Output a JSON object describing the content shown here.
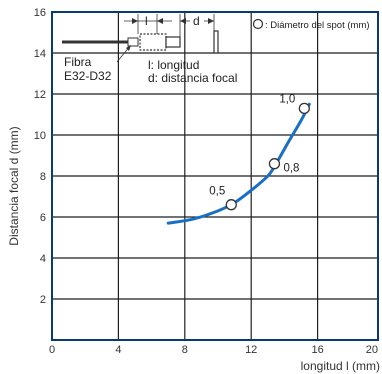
{
  "chart_data": {
    "type": "line",
    "xlabel": "longitud l (mm)",
    "ylabel": "Distancia focal d (mm)",
    "xlim": [
      0,
      20
    ],
    "ylim": [
      0,
      16
    ],
    "xticks": [
      "0",
      "4",
      "8",
      "12",
      "16",
      "20"
    ],
    "yticks": [
      "2",
      "4",
      "6",
      "8",
      "10",
      "12",
      "14",
      "16"
    ],
    "grid": true,
    "curve": {
      "x": [
        7.0,
        8.5,
        10.0,
        11.0,
        12.0,
        13.0,
        13.5,
        14.2,
        15.0,
        15.5
      ],
      "y": [
        5.7,
        5.9,
        6.3,
        6.7,
        7.3,
        8.0,
        8.6,
        9.6,
        10.7,
        11.5
      ]
    },
    "points": [
      {
        "label": "0,5",
        "x": 10.8,
        "y": 6.6
      },
      {
        "label": "0,8",
        "x": 13.4,
        "y": 8.6
      },
      {
        "label": "1,0",
        "x": 15.2,
        "y": 11.3
      }
    ],
    "legend": {
      "text": ": Diámetro del spot (mm)",
      "position": "top-right"
    },
    "annotations": {
      "fiber_line1": "Fibra",
      "fiber_line2": "E32-D32",
      "l_symbol": "l",
      "d_symbol": "d",
      "note_l": "l: longitud",
      "note_d": "d: distancia focal"
    },
    "colors": {
      "curve": "#1a6fc4",
      "grid": "#1f1f1f",
      "frame": "#0b3a73"
    }
  }
}
